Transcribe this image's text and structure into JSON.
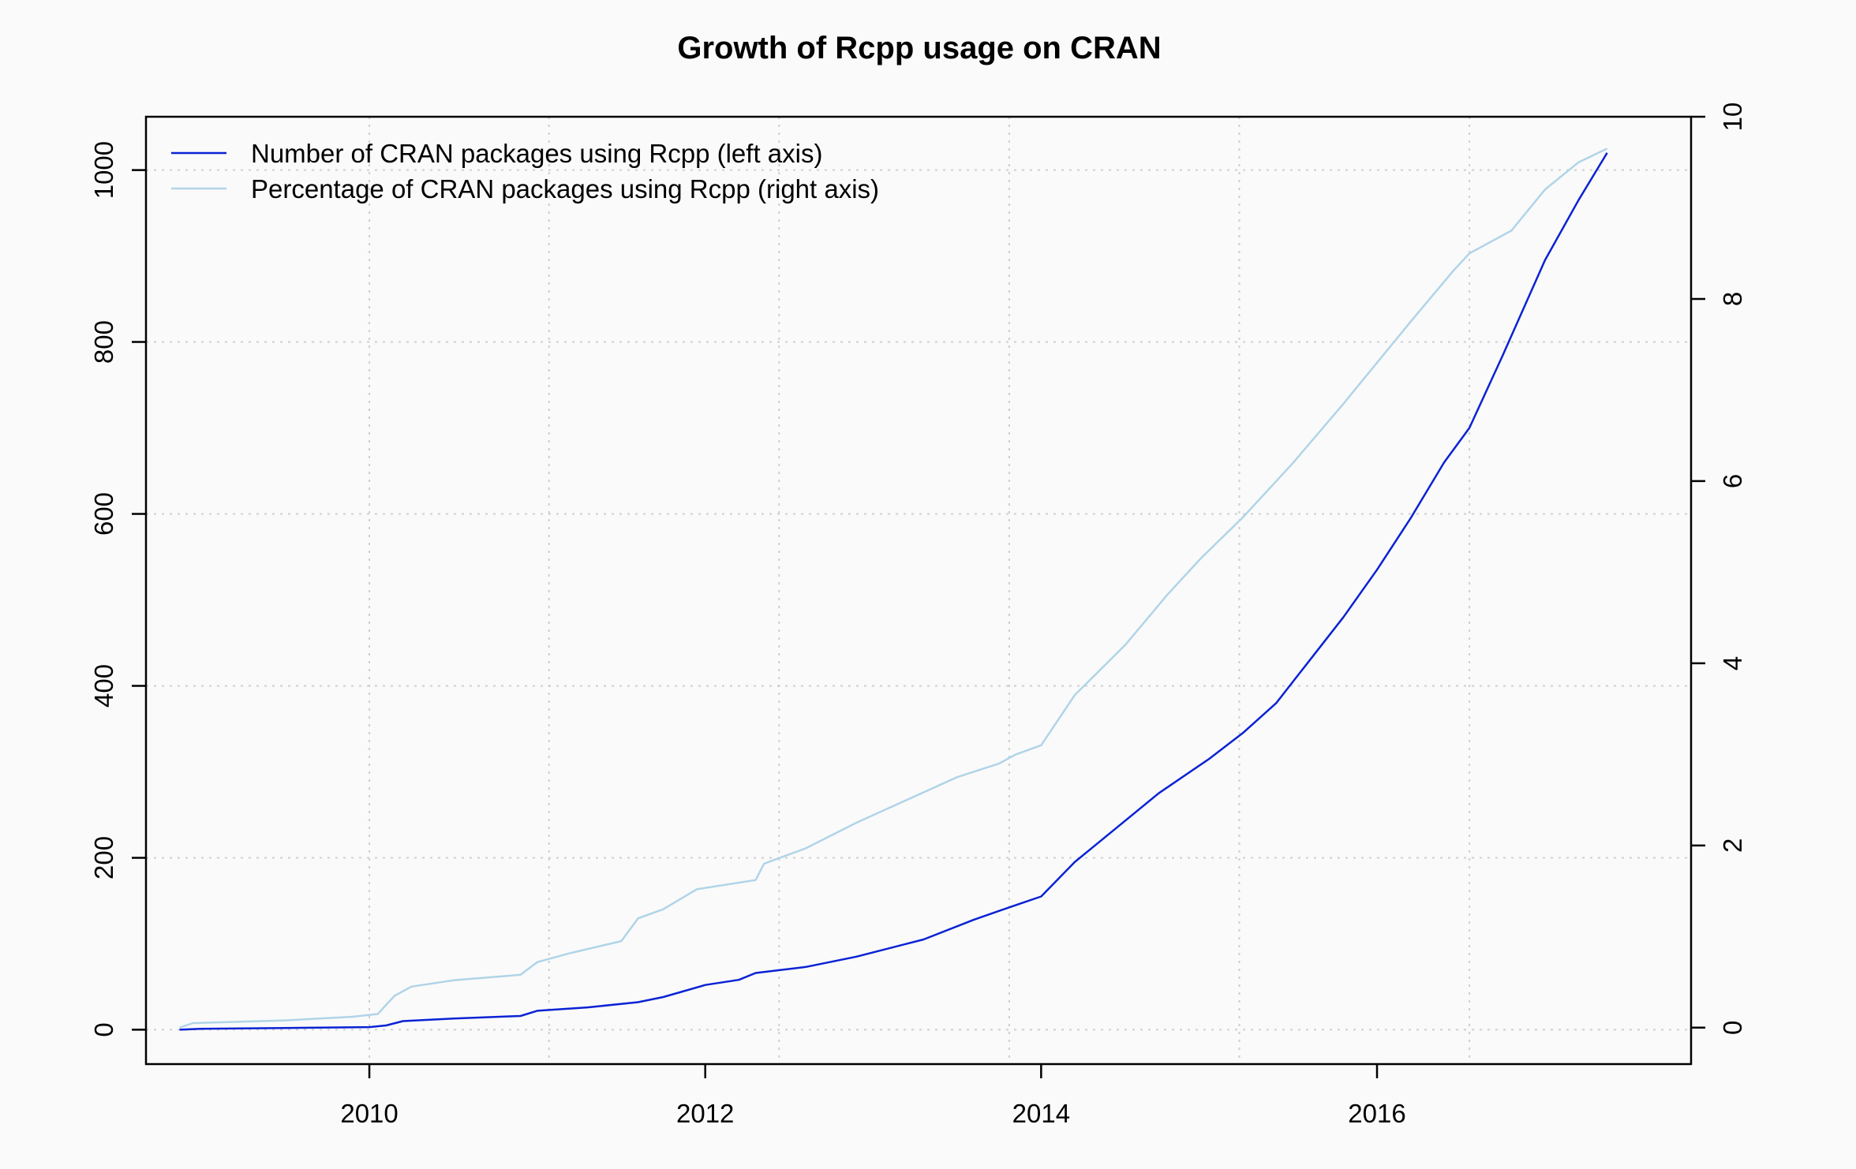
{
  "chart_data": {
    "type": "line",
    "title": "Growth of Rcpp usage on CRAN",
    "xlabel": "",
    "ylabel": "",
    "xlim": [
      2008.67,
      2017.87
    ],
    "ylim": [
      -40,
      1062
    ],
    "y2lim": [
      -0.4,
      10
    ],
    "x_ticks": [
      2010,
      2012,
      2014,
      2016
    ],
    "x_tick_labels": [
      "2010",
      "2012",
      "2014",
      "2016"
    ],
    "y_ticks": [
      0,
      200,
      400,
      600,
      800,
      1000
    ],
    "y_tick_labels": [
      "0",
      "200",
      "400",
      "600",
      "800",
      "1000"
    ],
    "y2_ticks": [
      0,
      2,
      4,
      6,
      8,
      10
    ],
    "y2_tick_labels": [
      "0",
      "2",
      "4",
      "6",
      "8",
      "10"
    ],
    "x_grid": [
      2010,
      2011.07,
      2012.44,
      2013.81,
      2015.18,
      2016.55
    ],
    "y_grid": [
      0,
      200,
      400,
      600,
      800,
      1000
    ],
    "grid": true,
    "legend": "top-left",
    "series": [
      {
        "name": "Number of CRAN packages using Rcpp (left axis)",
        "axis": "left",
        "color": "#0a22d4",
        "x": [
          2008.87,
          2009.0,
          2009.5,
          2010.0,
          2010.1,
          2010.2,
          2010.5,
          2010.9,
          2011.0,
          2011.3,
          2011.6,
          2011.75,
          2012.0,
          2012.2,
          2012.3,
          2012.6,
          2012.9,
          2013.3,
          2013.6,
          2013.85,
          2014.0,
          2014.2,
          2014.45,
          2014.7,
          2015.0,
          2015.2,
          2015.4,
          2015.6,
          2015.8,
          2016.0,
          2016.2,
          2016.4,
          2016.55,
          2016.75,
          2017.0,
          2017.2,
          2017.37
        ],
        "values": [
          0,
          1,
          2,
          3,
          5,
          10,
          13,
          16,
          22,
          26,
          32,
          38,
          52,
          58,
          66,
          73,
          85,
          105,
          128,
          145,
          155,
          195,
          235,
          275,
          315,
          345,
          380,
          430,
          480,
          535,
          595,
          660,
          700,
          785,
          895,
          965,
          1020
        ]
      },
      {
        "name": "Percentage of CRAN packages using Rcpp (right axis)",
        "axis": "right",
        "color": "#b0d4e8",
        "x": [
          2008.87,
          2008.95,
          2009.5,
          2009.9,
          2010.05,
          2010.15,
          2010.25,
          2010.5,
          2010.9,
          2011.0,
          2011.2,
          2011.5,
          2011.6,
          2011.75,
          2011.95,
          2012.3,
          2012.35,
          2012.6,
          2012.9,
          2013.2,
          2013.5,
          2013.75,
          2013.85,
          2014.0,
          2014.2,
          2014.5,
          2014.75,
          2014.95,
          2015.2,
          2015.5,
          2015.8,
          2016.0,
          2016.2,
          2016.45,
          2016.55,
          2016.8,
          2017.0,
          2017.2,
          2017.37
        ],
        "values": [
          0,
          0.05,
          0.08,
          0.12,
          0.15,
          0.35,
          0.45,
          0.52,
          0.58,
          0.72,
          0.82,
          0.95,
          1.2,
          1.3,
          1.52,
          1.62,
          1.8,
          1.97,
          2.25,
          2.5,
          2.75,
          2.9,
          3.0,
          3.1,
          3.65,
          4.2,
          4.75,
          5.15,
          5.6,
          6.2,
          6.85,
          7.3,
          7.75,
          8.3,
          8.5,
          8.75,
          9.2,
          9.5,
          9.65
        ]
      }
    ]
  }
}
